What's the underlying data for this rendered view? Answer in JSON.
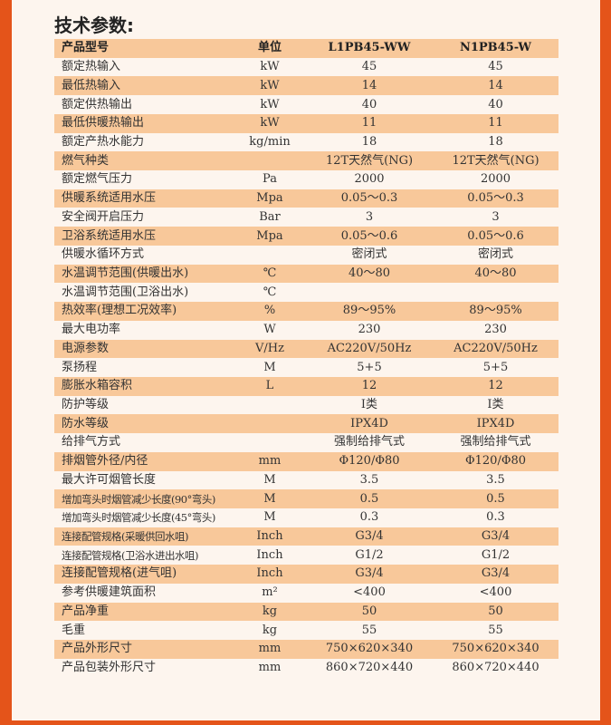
{
  "title": "技术参数:",
  "header": [
    "产品型号",
    "单位",
    "L1PB45-WW",
    "N1PB45-W"
  ],
  "rows": [
    [
      "额定热输入",
      "kW",
      "45",
      "45"
    ],
    [
      "最低热输入",
      "kW",
      "14",
      "14"
    ],
    [
      "额定供热输出",
      "kW",
      "40",
      "40"
    ],
    [
      "最低供暖热输出",
      "kW",
      "11",
      "11"
    ],
    [
      "额定产热水能力",
      "kg/min",
      "18",
      "18"
    ],
    [
      "燃气种类",
      "",
      "12T天然气(NG)",
      "12T天然气(NG)"
    ],
    [
      "额定燃气压力",
      "Pa",
      "2000",
      "2000"
    ],
    [
      "供暖系统适用水压",
      "Mpa",
      "0.05～0.3",
      "0.05～0.3"
    ],
    [
      "安全阀开启压力",
      "Bar",
      "3",
      "3"
    ],
    [
      "卫浴系统适用水压",
      "Mpa",
      "0.05～0.6",
      "0.05～0.6"
    ],
    [
      "供暖水循环方式",
      "",
      "密闭式",
      "密闭式"
    ],
    [
      "水温调节范围(供暖出水)",
      "℃",
      "40～80",
      "40～80"
    ],
    [
      "水温调节范围(卫浴出水)",
      "℃",
      "",
      ""
    ],
    [
      "热效率(理想工况效率)",
      "%",
      "89～95%",
      "89～95%"
    ],
    [
      "最大电功率",
      "W",
      "230",
      "230"
    ],
    [
      "电源参数",
      "V/Hz",
      "AC220V/50Hz",
      "AC220V/50Hz"
    ],
    [
      "泵扬程",
      "M",
      "5+5",
      "5+5"
    ],
    [
      "膨胀水箱容积",
      "L",
      "12",
      "12"
    ],
    [
      "防护等级",
      "",
      "I类",
      "I类"
    ],
    [
      "防水等级",
      "",
      "IPX4D",
      "IPX4D"
    ],
    [
      "给排气方式",
      "",
      "强制给排气式",
      "强制给排气式"
    ],
    [
      "排烟管外径/内径",
      "mm",
      "Φ120/Φ80",
      "Φ120/Φ80"
    ],
    [
      "最大许可烟管长度",
      "M",
      "3.5",
      "3.5"
    ],
    [
      "增加弯头时烟管减少长度(90°弯头)",
      "M",
      "0.5",
      "0.5"
    ],
    [
      "增加弯头时烟管减少长度(45°弯头)",
      "M",
      "0.3",
      "0.3"
    ],
    [
      "连接配管规格(采暖供回水咀)",
      "Inch",
      "G3/4",
      "G3/4"
    ],
    [
      "连接配管规格(卫浴水进出水咀)",
      "Inch",
      "G1/2",
      "G1/2"
    ],
    [
      "连接配管规格(进气咀)",
      "Inch",
      "G3/4",
      "G3/4"
    ],
    [
      "参考供暖建筑面积",
      "m²",
      "<400",
      "<400"
    ],
    [
      "产品净重",
      "kg",
      "50",
      "50"
    ],
    [
      "毛重",
      "kg",
      "55",
      "55"
    ],
    [
      "产品外形尺寸",
      "mm",
      "750×620×340",
      "750×620×340"
    ],
    [
      "产品包装外形尺寸",
      "mm",
      "860×720×440",
      "860×720×440"
    ]
  ],
  "colors": {
    "accent": "#e4541a",
    "row_highlight": "#f8c89a",
    "background": "#fdf5ee"
  }
}
